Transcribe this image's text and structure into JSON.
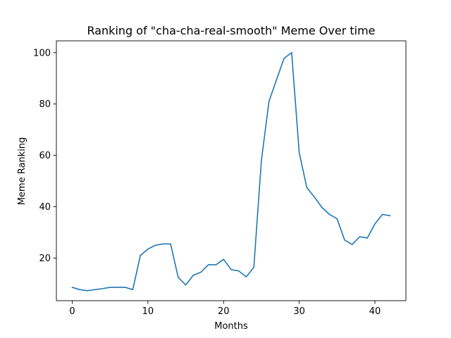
{
  "chart_data": {
    "type": "line",
    "title": "Ranking of \"cha-cha-real-smooth\" Meme Over time",
    "xlabel": "Months",
    "ylabel": "Meme Ranking",
    "xlim": [
      -2.1,
      44.1
    ],
    "ylim": [
      3.4,
      104.6
    ],
    "xticks": [
      0,
      10,
      20,
      30,
      40
    ],
    "yticks": [
      20,
      40,
      60,
      80,
      100
    ],
    "grid": false,
    "legend": "none",
    "line_color": "#1f77b4",
    "series": [
      {
        "x": [
          0,
          1,
          2,
          3,
          4,
          5,
          6,
          7,
          8,
          9,
          10,
          11,
          12,
          13,
          14,
          15,
          16,
          17,
          18,
          19,
          20,
          21,
          22,
          23,
          24,
          25,
          26,
          27,
          28,
          29,
          30,
          31,
          32,
          33,
          34,
          35,
          36,
          37,
          38,
          39,
          40,
          41,
          42
        ],
        "values": [
          8.6,
          7.7,
          7.3,
          7.7,
          8.1,
          8.6,
          8.6,
          8.6,
          7.7,
          21.0,
          23.5,
          25.0,
          25.5,
          25.5,
          12.5,
          9.5,
          13.3,
          14.5,
          17.4,
          17.4,
          19.5,
          15.5,
          15.0,
          12.7,
          16.4,
          58.0,
          81.0,
          89.5,
          97.8,
          100.0,
          61.0,
          47.5,
          43.8,
          39.7,
          37.0,
          35.3,
          27.0,
          25.3,
          28.3,
          27.8,
          33.3,
          37.0,
          36.5
        ]
      }
    ]
  }
}
